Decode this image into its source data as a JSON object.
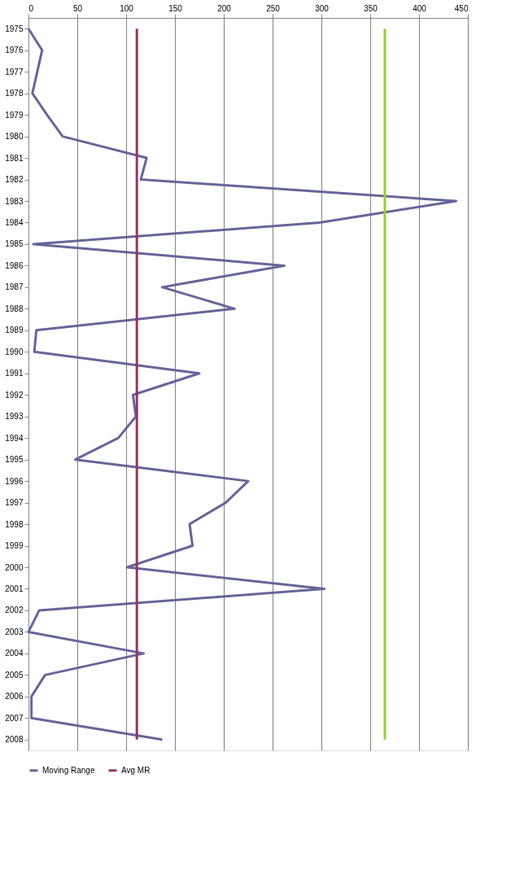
{
  "chart_data": {
    "type": "line",
    "orientation": "horizontal",
    "categories": [
      "1975",
      "1976",
      "1977",
      "1978",
      "1979",
      "1980",
      "1981",
      "1982",
      "1983",
      "1984",
      "1985",
      "1986",
      "1987",
      "1988",
      "1989",
      "1990",
      "1991",
      "1992",
      "1993",
      "1994",
      "1995",
      "1996",
      "1997",
      "1998",
      "1999",
      "2000",
      "2001",
      "2002",
      "2003",
      "2004",
      "2005",
      "2006",
      "2007",
      "2008"
    ],
    "series": [
      {
        "name": "Moving Range",
        "color": "#66669a",
        "values": [
          0,
          14,
          9,
          4,
          19,
          35,
          121,
          115,
          438,
          298,
          5,
          262,
          137,
          211,
          8,
          6,
          175,
          107,
          110,
          92,
          48,
          225,
          202,
          165,
          168,
          101,
          303,
          11,
          0,
          118,
          17,
          3,
          3,
          137
        ]
      },
      {
        "name": "Avg MR",
        "color": "#993366",
        "values": [
          111,
          111,
          111,
          111,
          111,
          111,
          111,
          111,
          111,
          111,
          111,
          111,
          111,
          111,
          111,
          111,
          111,
          111,
          111,
          111,
          111,
          111,
          111,
          111,
          111,
          111,
          111,
          111,
          111,
          111,
          111,
          111,
          111,
          111
        ]
      },
      {
        "color": "#99cc33",
        "values": [
          365,
          365,
          365,
          365,
          365,
          365,
          365,
          365,
          365,
          365,
          365,
          365,
          365,
          365,
          365,
          365,
          365,
          365,
          365,
          365,
          365,
          365,
          365,
          365,
          365,
          365,
          365,
          365,
          365,
          365,
          365,
          365,
          365,
          365
        ]
      }
    ],
    "xlim": [
      0,
      450
    ],
    "xticks": [
      0,
      50,
      100,
      150,
      200,
      250,
      300,
      350,
      400,
      450
    ],
    "grid": "x",
    "legend": "bottom"
  }
}
